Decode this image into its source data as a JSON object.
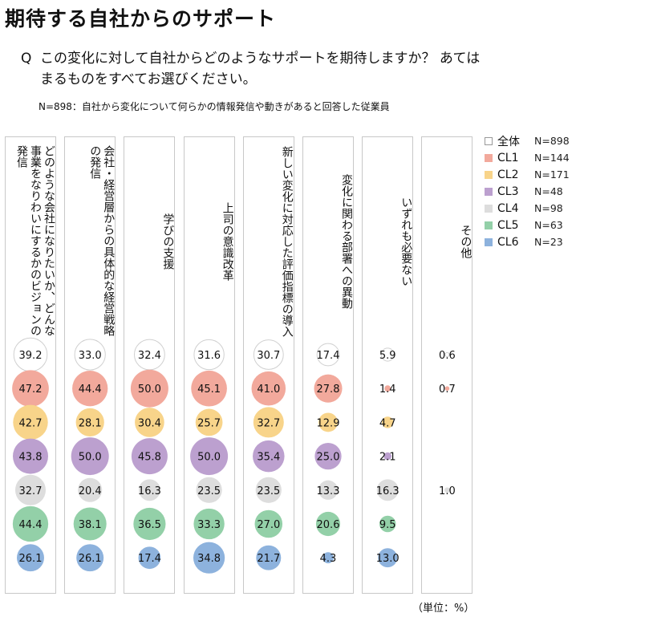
{
  "title": "期待する自社からのサポート",
  "question": {
    "mark": "Q",
    "text": "この変化に対して自社からどのようなサポートを期待しますか？ あてはまるものをすべてお選びください。"
  },
  "note": "N=898：自社から変化について何らかの情報発信や動きがあると回答した従業員",
  "unit_label": "（単位：%）",
  "chart_data": {
    "type": "bubble",
    "categories": [
      "どのような会社になりたいか、どんな事業をなりわいにするかのビジョンの発信",
      "会社・経営層からの具体的な経営戦略の発信",
      "学びの支援",
      "上司の意識改革",
      "新しい変化に対応した評価指標の導入",
      "変化に関わる部署への異動",
      "いずれも必要ない",
      "その他"
    ],
    "series": [
      {
        "name": "全体",
        "n": "N=898",
        "color": "#ffffff",
        "values": [
          39.2,
          33.0,
          32.4,
          31.6,
          30.7,
          17.4,
          5.9,
          0.6
        ]
      },
      {
        "name": "CL1",
        "n": "N=144",
        "color": "#f2a99c",
        "values": [
          47.2,
          44.4,
          50.0,
          45.1,
          41.0,
          27.8,
          1.4,
          0.7
        ]
      },
      {
        "name": "CL2",
        "n": "N=171",
        "color": "#f8d48a",
        "values": [
          42.7,
          28.1,
          30.4,
          25.7,
          32.7,
          12.9,
          4.7,
          null
        ]
      },
      {
        "name": "CL3",
        "n": "N=48",
        "color": "#bca0cf",
        "values": [
          43.8,
          50.0,
          45.8,
          50.0,
          35.4,
          25.0,
          2.1,
          null
        ]
      },
      {
        "name": "CL4",
        "n": "N=98",
        "color": "#dddddd",
        "values": [
          32.7,
          20.4,
          16.3,
          23.5,
          23.5,
          13.3,
          16.3,
          1.0
        ]
      },
      {
        "name": "CL5",
        "n": "N=63",
        "color": "#93d0a8",
        "values": [
          44.4,
          38.1,
          36.5,
          33.3,
          27.0,
          20.6,
          9.5,
          null
        ]
      },
      {
        "name": "CL6",
        "n": "N=23",
        "color": "#8db2dd",
        "values": [
          26.1,
          26.1,
          17.4,
          34.8,
          21.7,
          4.3,
          13.0,
          null
        ]
      }
    ]
  }
}
